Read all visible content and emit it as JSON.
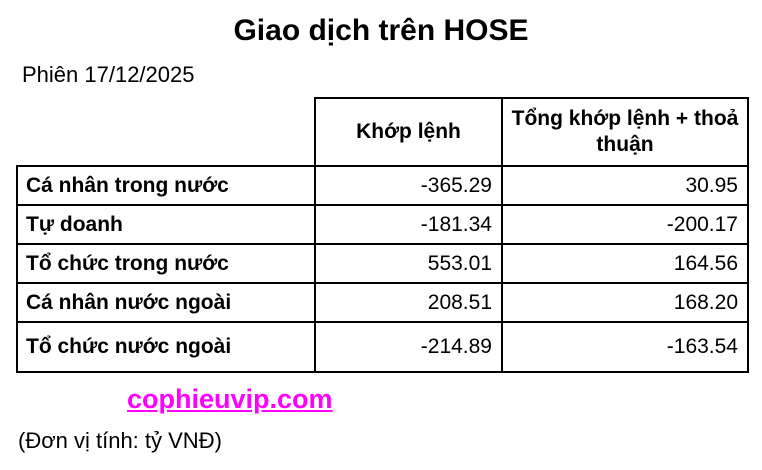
{
  "page": {
    "title": "Giao dịch trên HOSE",
    "session": "Phiên 17/12/2025",
    "watermark": "cophieuvip.com",
    "unit_note": "(Đơn vị tính: tỷ VNĐ)",
    "accent_color": "#FF00FF",
    "border_color": "#000000"
  },
  "table": {
    "columns": [
      "",
      "Khớp lệnh",
      "Tổng khớp lệnh + thoả thuận"
    ],
    "rows": [
      {
        "label": "Cá nhân trong nước",
        "khop_lenh": "-365.29",
        "tong": "30.95"
      },
      {
        "label": "Tự doanh",
        "khop_lenh": "-181.34",
        "tong": "-200.17"
      },
      {
        "label": "Tổ chức trong nước",
        "khop_lenh": "553.01",
        "tong": "164.56"
      },
      {
        "label": "Cá nhân nước ngoài",
        "khop_lenh": "208.51",
        "tong": "168.20"
      },
      {
        "label": "Tổ chức nước ngoài",
        "khop_lenh": "-214.89",
        "tong": "-163.54"
      }
    ]
  },
  "chart_data": {
    "type": "table",
    "title": "Giao dịch trên HOSE",
    "subtitle": "Phiên 17/12/2025",
    "unit": "tỷ VNĐ",
    "columns": [
      "",
      "Khớp lệnh",
      "Tổng khớp lệnh + thoả thuận"
    ],
    "rows": [
      [
        "Cá nhân trong nước",
        -365.29,
        30.95
      ],
      [
        "Tự doanh",
        -181.34,
        -200.17
      ],
      [
        "Tổ chức trong nước",
        553.01,
        164.56
      ],
      [
        "Cá nhân nước ngoài",
        208.51,
        168.2
      ],
      [
        "Tổ chức nước ngoài",
        -214.89,
        -163.54
      ]
    ],
    "source_watermark": "cophieuvip.com"
  }
}
